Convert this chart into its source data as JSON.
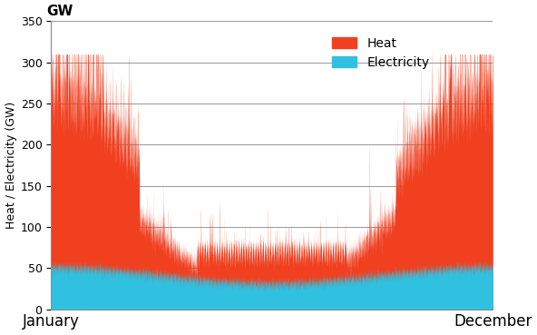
{
  "ylabel": "Heat / Electricity (GW)",
  "xlabel_left": "January",
  "xlabel_right": "December",
  "gw_label": "GW",
  "ylim": [
    0,
    350
  ],
  "yticks": [
    0,
    50,
    100,
    150,
    200,
    250,
    300,
    350
  ],
  "heat_color": "#f04020",
  "elec_color": "#30c0e0",
  "legend_heat": "Heat",
  "legend_elec": "Electricity",
  "bg_color": "#ffffff",
  "grid_color": "#888888",
  "n_points": 8760,
  "figsize": [
    5.92,
    3.69
  ],
  "dpi": 100
}
